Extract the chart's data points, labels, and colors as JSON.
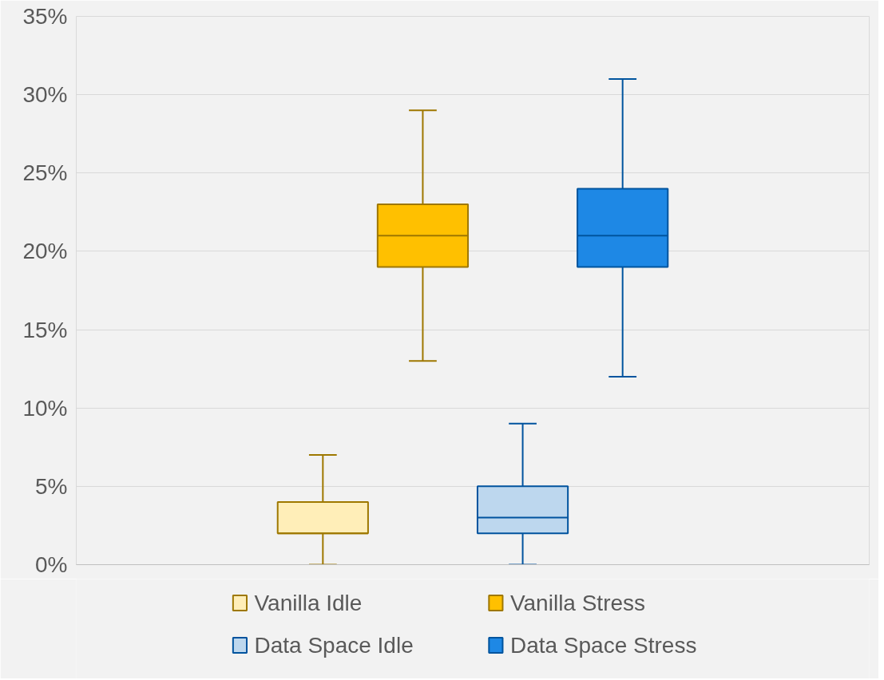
{
  "chart_data": {
    "type": "box",
    "categories": [
      null
    ],
    "series": [
      {
        "name": "Vanilla Idle",
        "color": "#ffeeb8",
        "boxes": [
          {
            "low": 0,
            "q1": 2,
            "median": 2,
            "q3": 4,
            "high": 7
          }
        ]
      },
      {
        "name": "Vanilla Stress",
        "color": "#ffc000",
        "boxes": [
          {
            "low": 13,
            "q1": 19,
            "median": 21,
            "q3": 23,
            "high": 29
          }
        ]
      },
      {
        "name": "Data Space Idle",
        "color": "#bdd7ee",
        "boxes": [
          {
            "low": 0,
            "q1": 2,
            "median": 3,
            "q3": 5,
            "high": 9
          }
        ]
      },
      {
        "name": "Data Space Stress",
        "color": "#1e88e5",
        "boxes": [
          {
            "low": 12,
            "q1": 19,
            "median": 21,
            "q3": 24,
            "high": 31
          }
        ]
      }
    ],
    "ylim": [
      0,
      35
    ],
    "yticks": [
      {
        "value": 0,
        "label": "0%"
      },
      {
        "value": 5,
        "label": "5%"
      },
      {
        "value": 10,
        "label": "10%"
      },
      {
        "value": 15,
        "label": "15%"
      },
      {
        "value": 20,
        "label": "20%"
      },
      {
        "value": 25,
        "label": "25%"
      },
      {
        "value": 30,
        "label": "30%"
      },
      {
        "value": 35,
        "label": "35%"
      }
    ],
    "grid": "y",
    "legend": "bottom",
    "tick_labels": "y"
  }
}
